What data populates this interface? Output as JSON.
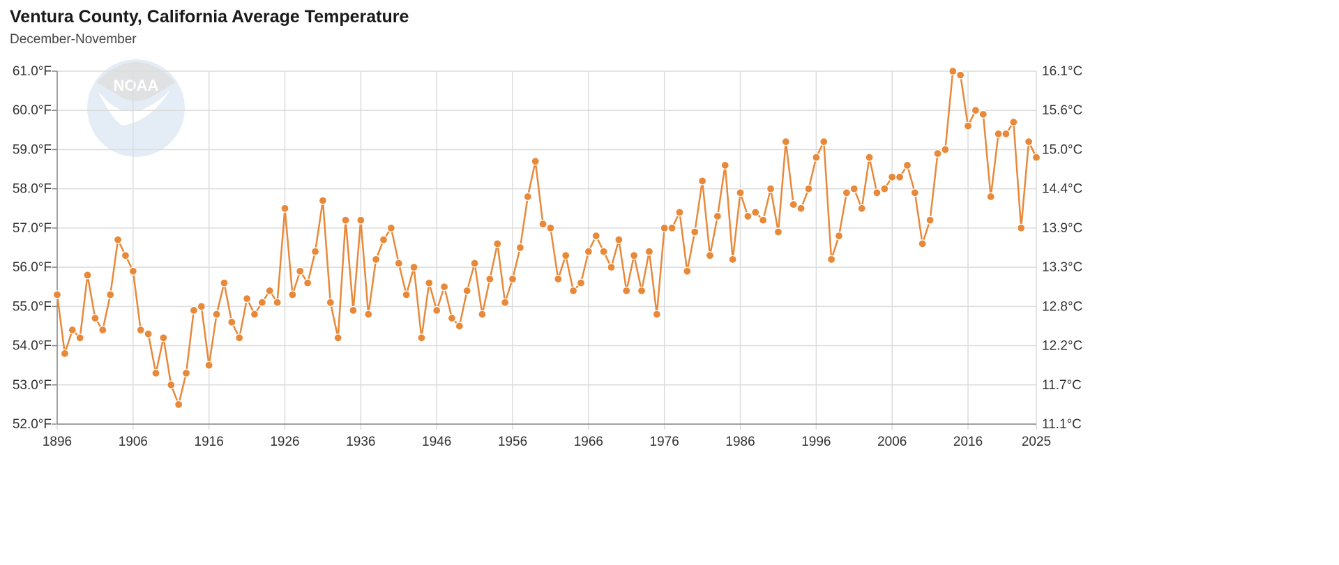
{
  "chart_data": {
    "type": "line",
    "title": "Ventura County, California Average Temperature",
    "subtitle": "December-November",
    "xlim": [
      1896,
      2025
    ],
    "ylim": [
      52.0,
      61.0
    ],
    "y_ticks_left": [
      "52.0°F",
      "53.0°F",
      "54.0°F",
      "55.0°F",
      "56.0°F",
      "57.0°F",
      "58.0°F",
      "59.0°F",
      "60.0°F",
      "61.0°F"
    ],
    "y_ticks_right": [
      "11.1°C",
      "11.7°C",
      "12.2°C",
      "12.8°C",
      "13.3°C",
      "13.9°C",
      "14.4°C",
      "15.0°C",
      "15.6°C",
      "16.1°C"
    ],
    "x_ticks": [
      "1896",
      "1906",
      "1916",
      "1926",
      "1936",
      "1946",
      "1956",
      "1966",
      "1976",
      "1986",
      "1996",
      "2006",
      "2016",
      "2025"
    ],
    "grid": true,
    "logo": "NOAA",
    "series_color": "#e8893a",
    "x_start": 1896,
    "values": [
      55.3,
      53.8,
      54.4,
      54.2,
      55.8,
      54.7,
      54.4,
      55.3,
      56.7,
      56.3,
      55.9,
      54.4,
      54.3,
      53.3,
      54.2,
      53.0,
      52.5,
      53.3,
      54.9,
      55.0,
      53.5,
      54.8,
      55.6,
      54.6,
      54.2,
      55.2,
      54.8,
      55.1,
      55.4,
      55.1,
      57.5,
      55.3,
      55.9,
      55.6,
      56.4,
      57.7,
      55.1,
      54.2,
      57.2,
      54.9,
      57.2,
      54.8,
      56.2,
      56.7,
      57.0,
      56.1,
      55.3,
      56.0,
      54.2,
      55.6,
      54.9,
      55.5,
      54.7,
      54.5,
      55.4,
      56.1,
      54.8,
      55.7,
      56.6,
      55.1,
      55.7,
      56.5,
      57.8,
      58.7,
      57.1,
      57.0,
      55.7,
      56.3,
      55.4,
      55.6,
      56.4,
      56.8,
      56.4,
      56.0,
      56.7,
      55.4,
      56.3,
      55.4,
      56.4,
      54.8,
      57.0,
      57.0,
      57.4,
      55.9,
      56.9,
      58.2,
      56.3,
      57.3,
      58.6,
      56.2,
      57.9,
      57.3,
      57.4,
      57.2,
      58.0,
      56.9,
      59.2,
      57.6,
      57.5,
      58.0,
      58.8,
      59.2,
      56.2,
      56.8,
      57.9,
      58.0,
      57.5,
      58.8,
      57.9,
      58.0,
      58.3,
      58.3,
      58.6,
      57.9,
      56.6,
      57.2,
      58.9,
      59.0,
      61.0,
      60.9,
      59.6,
      60.0,
      59.9,
      57.8,
      59.4,
      59.4,
      59.7,
      57.0,
      59.2,
      58.8
    ]
  }
}
